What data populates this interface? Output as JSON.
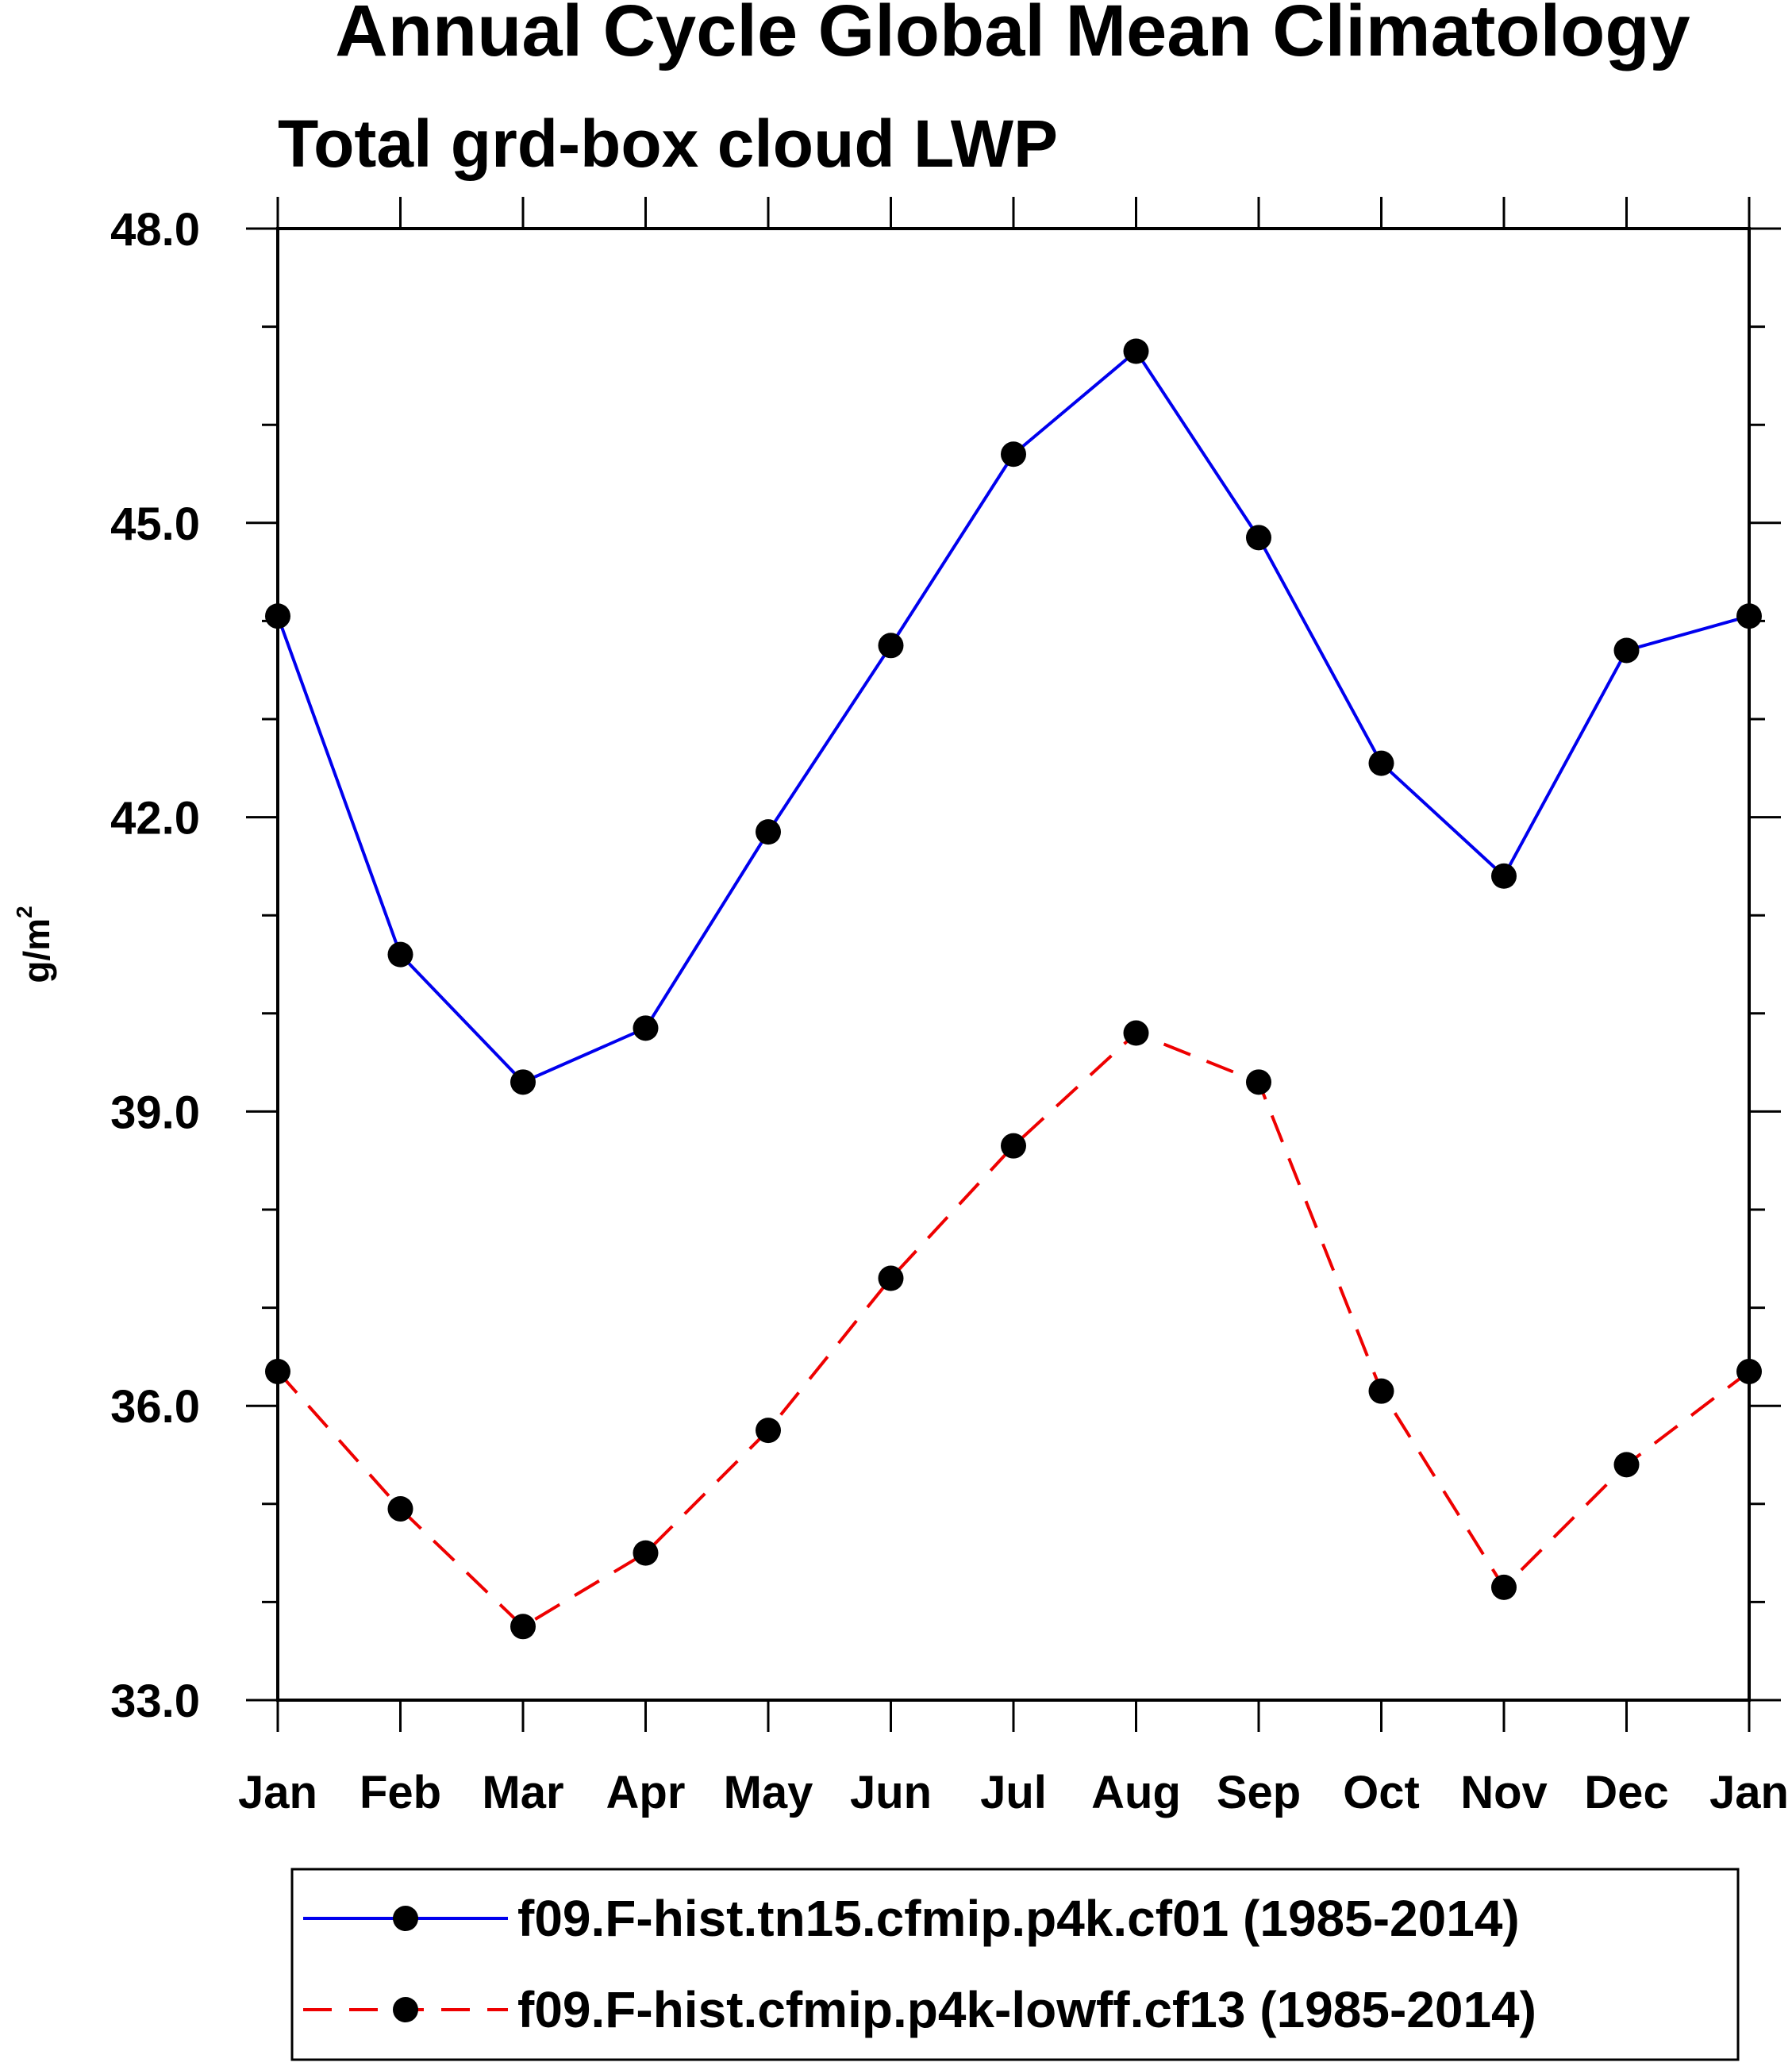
{
  "chart_data": {
    "type": "line",
    "title": "Annual Cycle Global Mean Climatology",
    "subtitle": "Total grd-box cloud LWP",
    "ylabel": "g/m",
    "ylabel_superscript": "2",
    "xlabel": "",
    "categories": [
      "Jan",
      "Feb",
      "Mar",
      "Apr",
      "May",
      "Jun",
      "Jul",
      "Aug",
      "Sep",
      "Oct",
      "Nov",
      "Dec",
      "Jan"
    ],
    "ylim": [
      33.0,
      48.0
    ],
    "yticks": [
      "48.0",
      "45.0",
      "42.0",
      "39.0",
      "36.0",
      "33.0"
    ],
    "grid": false,
    "legend_position": "bottom",
    "series": [
      {
        "name": "f09.F-hist.tn15.cfmip.p4k.cf01 (1985-2014)",
        "color": "#0000ee",
        "line_style": "solid",
        "marker": "filled-circle",
        "values": [
          44.05,
          40.6,
          39.3,
          39.85,
          41.85,
          43.75,
          45.7,
          46.75,
          44.85,
          42.55,
          41.4,
          43.7,
          44.05
        ]
      },
      {
        "name": "f09.F-hist.cfmip.p4k-lowff.cf13 (1985-2014)",
        "color": "#ee0000",
        "line_style": "dashed",
        "marker": "filled-circle",
        "values": [
          36.35,
          34.95,
          33.75,
          34.5,
          35.75,
          37.3,
          38.65,
          39.8,
          39.3,
          36.15,
          34.15,
          35.4,
          36.35
        ]
      }
    ]
  }
}
